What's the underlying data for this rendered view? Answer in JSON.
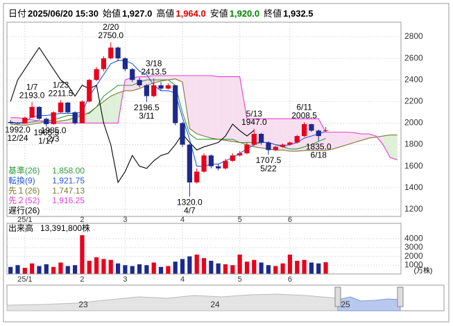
{
  "header": {
    "date_label": "日付",
    "date": "2025/06/20 15:30",
    "items": [
      {
        "label": "始値",
        "value": 1927,
        "value_label": "1,927.0",
        "color": "#000000"
      },
      {
        "label": "高値",
        "value": 1964,
        "value_label": "1,964.0",
        "color": "#e00000"
      },
      {
        "label": "安値",
        "value": 1920,
        "value_label": "1,920.0",
        "color": "#008000"
      },
      {
        "label": "終値",
        "value": 1932.5,
        "value_label": "1,932.5",
        "color": "#000000"
      }
    ]
  },
  "chart_data": [
    {
      "type": "candlestick",
      "categories": [
        null,
        null,
        "25/1",
        null,
        null,
        null,
        null,
        null,
        null,
        null,
        "2",
        null,
        null,
        null,
        null,
        null,
        "3",
        null,
        null,
        null,
        null,
        null,
        null,
        null,
        "4",
        null,
        null,
        null,
        null,
        null,
        null,
        null,
        "5",
        null,
        null,
        null,
        null,
        null,
        null,
        "6",
        null,
        null,
        null,
        null,
        null,
        null,
        null,
        null,
        null,
        null,
        null,
        null,
        null,
        null,
        null
      ],
      "open": [
        2010,
        2000,
        1995,
        2050,
        2150,
        2040,
        1990,
        2100,
        2190,
        2100,
        2000,
        2200,
        2400,
        2500,
        2600,
        2700,
        2600,
        2500,
        2400,
        2350,
        2250,
        2350,
        2320,
        2350,
        2000,
        1800,
        1450,
        1550,
        1700,
        1600,
        1580,
        1650,
        1700,
        1720,
        1800,
        1900,
        1820,
        1750,
        1780,
        1800,
        1820,
        1880,
        1990,
        1930,
        1927,
        null,
        null,
        null,
        null,
        null,
        null,
        null,
        null,
        null,
        null
      ],
      "high": [
        2030,
        2010,
        2060,
        2193,
        2155,
        2050,
        2110,
        2211.5,
        2195,
        2110,
        2210,
        2410,
        2520,
        2620,
        2750,
        2710,
        2610,
        2510,
        2420,
        2360,
        2413.5,
        2380,
        2370,
        2355,
        2010,
        1810,
        1580,
        1720,
        1710,
        1620,
        1670,
        1720,
        1740,
        1820,
        1947,
        1910,
        1830,
        1790,
        1810,
        1830,
        1890,
        2008.5,
        1995,
        1940,
        1964,
        null,
        null,
        null,
        null,
        null,
        null,
        null,
        null,
        null,
        null
      ],
      "low": [
        1995,
        1992,
        1995,
        2045,
        2030,
        1965.5,
        1985,
        2095,
        2090,
        1985,
        1995,
        2190,
        2390,
        2480,
        2590,
        2580,
        2480,
        2380,
        2330,
        2196.5,
        2240,
        2300,
        2310,
        1980,
        1780,
        1320,
        1440,
        1540,
        1580,
        1560,
        1570,
        1640,
        1690,
        1710,
        1790,
        1800,
        1707.5,
        1740,
        1770,
        1790,
        1810,
        1870,
        1920,
        1835,
        1920,
        null,
        null,
        null,
        null,
        null,
        null,
        null,
        null,
        null,
        null
      ],
      "close": [
        2000,
        1995,
        2050,
        2150,
        2040,
        1990,
        2100,
        2190,
        2100,
        2000,
        2200,
        2400,
        2500,
        2600,
        2700,
        2600,
        2500,
        2400,
        2350,
        2250,
        2350,
        2320,
        2350,
        2000,
        1800,
        1450,
        1550,
        1700,
        1600,
        1580,
        1650,
        1700,
        1720,
        1800,
        1900,
        1820,
        1750,
        1780,
        1800,
        1820,
        1880,
        1990,
        1930,
        1880,
        1932.5,
        null,
        null,
        null,
        null,
        null,
        null,
        null,
        null,
        null,
        null
      ],
      "up_color": "#e8001c",
      "down_color": "#1b2a8c",
      "series": [
        {
          "name": "基準(26)",
          "color": "#2e9a3a",
          "latest": 1858,
          "latest_label": "1,858.00",
          "values": [
            2000,
            2000,
            2000,
            2010,
            2020,
            2020,
            2030,
            2050,
            2070,
            2070,
            2080,
            2090,
            2150,
            2250,
            2300,
            2350,
            2350,
            2350,
            2380,
            2400,
            2400,
            2400,
            2400,
            2350,
            2100,
            1900,
            1850,
            1850,
            1850,
            1850,
            1850,
            1850,
            1820,
            1820,
            1820,
            1820,
            1820,
            1800,
            1780,
            1760,
            1760,
            1780,
            1800,
            1830,
            1858,
            null,
            null,
            null,
            null,
            null,
            null,
            null,
            null,
            null,
            null
          ]
        },
        {
          "name": "転換(9)",
          "color": "#2255dd",
          "latest": 1921.75,
          "latest_label": "1,921.75",
          "values": [
            2010,
            2000,
            2010,
            2060,
            2070,
            2070,
            2080,
            2090,
            2090,
            2090,
            2100,
            2250,
            2350,
            2450,
            2550,
            2580,
            2580,
            2550,
            2480,
            2450,
            2350,
            2300,
            2300,
            2280,
            2050,
            1850,
            1600,
            1600,
            1620,
            1620,
            1650,
            1680,
            1720,
            1760,
            1800,
            1820,
            1820,
            1800,
            1790,
            1800,
            1820,
            1860,
            1880,
            1900,
            1921.75,
            null,
            null,
            null,
            null,
            null,
            null,
            null,
            null,
            null,
            null
          ]
        },
        {
          "name": "先１(26)",
          "color": "#7a7a30",
          "latest": 1747.13,
          "latest_label": "1,747.13",
          "values": [
            1990,
            1985,
            1980,
            1990,
            2000,
            2010,
            2010,
            2020,
            2030,
            2050,
            2070,
            2100,
            2150,
            2200,
            2250,
            2280,
            2300,
            2300,
            2320,
            2350,
            2370,
            2390,
            2400,
            2410,
            2380,
            1950,
            1900,
            1880,
            1860,
            1850,
            1840,
            1830,
            1820,
            1800,
            1780,
            1770,
            1760,
            1750,
            1750,
            1740,
            1740,
            1745,
            1747,
            1747,
            1747.13,
            1760,
            1780,
            1800,
            1820,
            1840,
            1860,
            1870,
            1880,
            1890,
            1890
          ]
        },
        {
          "name": "先２(52)",
          "color": "#e040d0",
          "latest": 1916.25,
          "latest_label": "1,916.25",
          "values": [
            2050,
            2050,
            2040,
            2030,
            2020,
            2010,
            2000,
            2000,
            2000,
            2000,
            2000,
            2000,
            2000,
            2000,
            2000,
            2000,
            2400,
            2420,
            2430,
            2430,
            2440,
            2440,
            2440,
            2440,
            2440,
            2440,
            2440,
            2440,
            2440,
            2430,
            2430,
            2430,
            2430,
            2040,
            2040,
            2040,
            2040,
            2040,
            2040,
            2040,
            2040,
            2040,
            2040,
            2040,
            1916.25,
            1916.25,
            1916.25,
            1916.25,
            1910,
            1900,
            1900,
            1880,
            1800,
            1680,
            1660
          ]
        },
        {
          "name": "遅行(26)",
          "color": "#000000",
          "values": [
            2200,
            2400,
            2500,
            2600,
            2700,
            2600,
            2500,
            2400,
            2350,
            2250,
            2350,
            2320,
            2350,
            2000,
            1800,
            1450,
            1550,
            1700,
            1600,
            1580,
            1650,
            1700,
            1720,
            1800,
            1900,
            1820,
            1750,
            1780,
            1800,
            1820,
            1880,
            1990,
            1930,
            1880,
            1932.5,
            null,
            null,
            null,
            null,
            null,
            null,
            null,
            null,
            null,
            null,
            null,
            null,
            null,
            null,
            null,
            null,
            null,
            null,
            null,
            null
          ]
        }
      ],
      "cloud_colors": [
        "#dff0d8",
        "#f8dff0"
      ],
      "annotations": [
        {
          "date": "12/24",
          "value": 1992,
          "value_label": "1992.0"
        },
        {
          "date": "1/7",
          "value": 2193,
          "value_label": "2193.0"
        },
        {
          "date": "1/17",
          "value": 1965.5,
          "value_label": "1965.5"
        },
        {
          "date": "1/23",
          "value": 2211.5,
          "value_label": "2211.5"
        },
        {
          "date": "2/3",
          "value": 1985,
          "value_label": "1985.0"
        },
        {
          "date": "2/20",
          "value": 2750,
          "value_label": "2750.0"
        },
        {
          "date": "3/11",
          "value": 2196.5,
          "value_label": "2196.5"
        },
        {
          "date": "3/18",
          "value": 2413.5,
          "value_label": "2413.5"
        },
        {
          "date": "4/7",
          "value": 1320,
          "value_label": "1320.0"
        },
        {
          "date": "5/13",
          "value": 1947,
          "value_label": "1947.0"
        },
        {
          "date": "5/22",
          "value": 1707.5,
          "value_label": "1707.5"
        },
        {
          "date": "6/11",
          "value": 2008.5,
          "value_label": "2008.5"
        },
        {
          "date": "6/18",
          "value": 1835,
          "value_label": "1835.0"
        }
      ],
      "ylim": [
        1135,
        2935
      ],
      "yticks": [
        1200,
        1400,
        1600,
        1800,
        2000,
        2200,
        2400,
        2600,
        2800
      ],
      "grid": true
    },
    {
      "type": "volume",
      "title": "出来高",
      "latest": 1339.18,
      "latest_label": "13,391,800株",
      "unit": "(万株)",
      "categories": [
        null,
        null,
        "25/1",
        null,
        null,
        null,
        null,
        null,
        null,
        null,
        "2",
        null,
        null,
        null,
        null,
        null,
        "3",
        null,
        null,
        null,
        null,
        null,
        null,
        null,
        "4",
        null,
        null,
        null,
        null,
        null,
        null,
        null,
        "5",
        null,
        null,
        null,
        null,
        null,
        null,
        "6",
        null,
        null,
        null,
        null,
        null,
        null,
        null,
        null,
        null,
        null,
        null,
        null,
        null,
        null,
        null
      ],
      "values": [
        800,
        1000,
        700,
        1200,
        900,
        1100,
        800,
        1300,
        900,
        1000,
        4400,
        1500,
        1900,
        1700,
        1600,
        1200,
        1000,
        900,
        1100,
        1000,
        1300,
        800,
        900,
        1400,
        1700,
        2000,
        2200,
        1800,
        1500,
        1200,
        1100,
        1000,
        2200,
        1400,
        1600,
        1300,
        1000,
        900,
        1200,
        2200,
        1500,
        1600,
        1300,
        1200,
        1339.18,
        null,
        null,
        null,
        null,
        null,
        null,
        null,
        null,
        null,
        null
      ],
      "ylim": [
        0,
        5750
      ],
      "yticks": [
        1000,
        2000,
        3000,
        4000
      ],
      "grid": true
    }
  ],
  "navigator": {
    "labels": [
      "23",
      "24",
      "25"
    ]
  }
}
